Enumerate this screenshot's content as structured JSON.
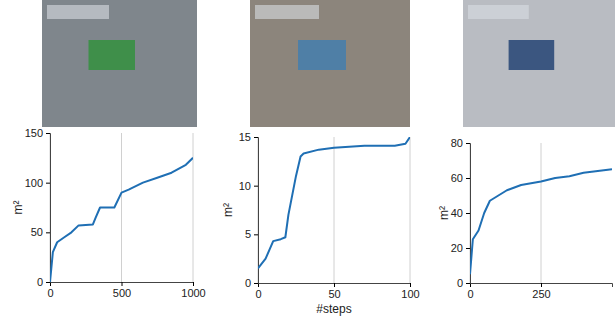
{
  "chart_data": [
    {
      "type": "line",
      "ylabel": "m²",
      "color": "#1f6fb4",
      "grid": "x",
      "x": [
        0,
        20,
        50,
        100,
        150,
        200,
        300,
        320,
        350,
        450,
        500,
        550,
        650,
        750,
        850,
        950,
        1000
      ],
      "values": [
        0,
        30,
        40,
        45,
        50,
        57,
        58,
        65,
        75,
        75,
        90,
        93,
        100,
        105,
        110,
        118,
        125
      ],
      "xlim": [
        0,
        1000
      ],
      "ylim": [
        0,
        150
      ],
      "xticks": [
        0,
        500,
        1000
      ],
      "yticks": [
        0,
        50,
        100,
        150
      ]
    },
    {
      "type": "line",
      "ylabel": "m²",
      "xlabel": "#steps",
      "color": "#1f6fb4",
      "grid": "x",
      "x": [
        0,
        5,
        10,
        15,
        18,
        20,
        25,
        28,
        30,
        40,
        50,
        60,
        70,
        90,
        97,
        100
      ],
      "values": [
        1.5,
        2.5,
        4.3,
        4.5,
        4.7,
        7,
        11,
        13,
        13.3,
        13.7,
        13.9,
        14,
        14.1,
        14.1,
        14.3,
        15
      ],
      "xlim": [
        0,
        100
      ],
      "ylim": [
        0,
        15
      ],
      "xticks": [
        0,
        50,
        100
      ],
      "yticks": [
        0,
        5,
        10,
        15
      ]
    },
    {
      "type": "line",
      "ylabel": "m²",
      "color": "#1f6fb4",
      "grid": "x",
      "x": [
        0,
        10,
        30,
        50,
        70,
        100,
        130,
        180,
        250,
        300,
        350,
        400,
        450,
        500
      ],
      "values": [
        5,
        25,
        30,
        40,
        47,
        50,
        53,
        56,
        58,
        60,
        61,
        63,
        64,
        65
      ],
      "xlim": [
        0,
        500
      ],
      "ylim": [
        0,
        80
      ],
      "xticks": [
        0,
        250
      ],
      "yticks": [
        0,
        20,
        40,
        60,
        80
      ]
    }
  ]
}
